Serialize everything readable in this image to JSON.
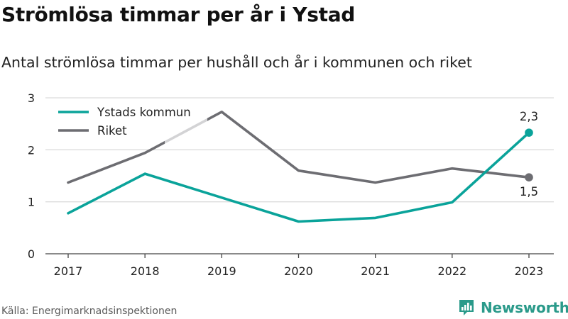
{
  "header": {
    "title": "Strömlösa timmar per år i Ystad",
    "subtitle": "Antal strömlösa timmar per hushåll och år i kommunen och riket"
  },
  "footer": {
    "source": "Källa: Energimarknadsinspektionen",
    "brand": "Newsworthy"
  },
  "colors": {
    "ystad": "#0aa39a",
    "riket": "#6d6d72",
    "grid": "#dcdcdc",
    "axis": "#444444"
  },
  "chart_data": {
    "type": "line",
    "title": "Strömlösa timmar per år i Ystad",
    "subtitle": "Antal strömlösa timmar per hushåll och år i kommunen och riket",
    "x": [
      "2017",
      "2018",
      "2019",
      "2020",
      "2021",
      "2022",
      "2023"
    ],
    "series": [
      {
        "name": "Ystads kommun",
        "values": [
          0.78,
          1.54,
          1.08,
          0.62,
          0.69,
          0.99,
          2.33
        ],
        "end_label": "2,3"
      },
      {
        "name": "Riket",
        "values": [
          1.37,
          1.94,
          2.73,
          1.6,
          1.37,
          1.64,
          1.47
        ],
        "end_label": "1,5"
      }
    ],
    "ylim": [
      0,
      3
    ],
    "yticks": [
      "0",
      "1",
      "2",
      "3"
    ],
    "grid": true,
    "legend": "top-left"
  }
}
